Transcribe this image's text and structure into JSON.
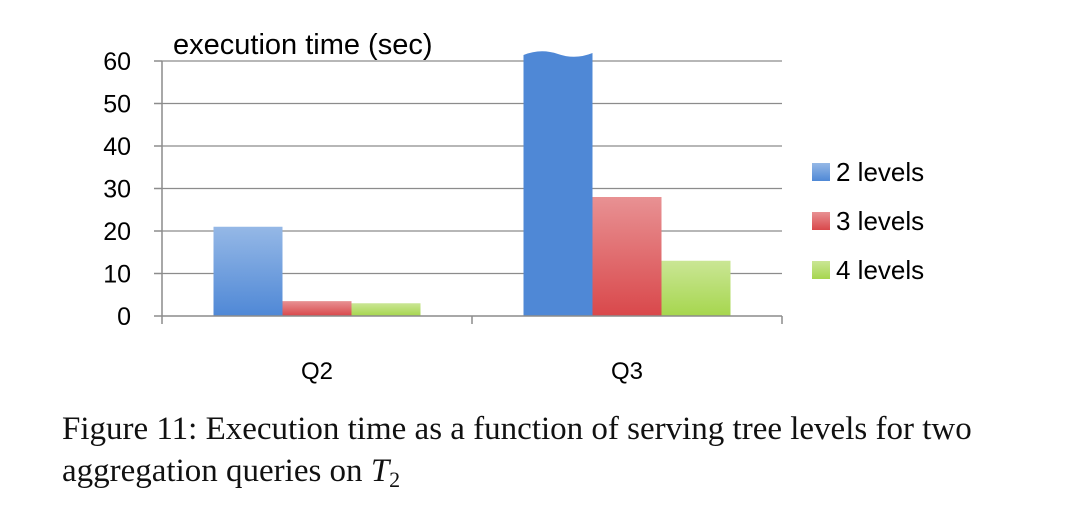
{
  "chart_data": {
    "type": "bar",
    "title": "",
    "ylabel": "execution time (sec)",
    "xlabel": "",
    "categories": [
      "Q2",
      "Q3"
    ],
    "series": [
      {
        "name": "2 levels",
        "values": [
          21,
          62
        ],
        "color": "#4f88d6"
      },
      {
        "name": "3 levels",
        "values": [
          3.5,
          28
        ],
        "color": "#d9484b"
      },
      {
        "name": "4 levels",
        "values": [
          3,
          13
        ],
        "color": "#a6d64e"
      }
    ],
    "yticks": [
      0,
      10,
      20,
      30,
      40,
      50,
      60
    ],
    "ylim": [
      0,
      60
    ],
    "clipped": {
      "category": "Q3",
      "series": "2 levels",
      "note": "bar extends past axis top"
    },
    "grid": true,
    "legend_position": "right"
  },
  "caption": {
    "prefix": "Figure 11: Execution time as a function of serving tree levels for two aggregation queries on ",
    "var": "T",
    "sub": "2"
  }
}
